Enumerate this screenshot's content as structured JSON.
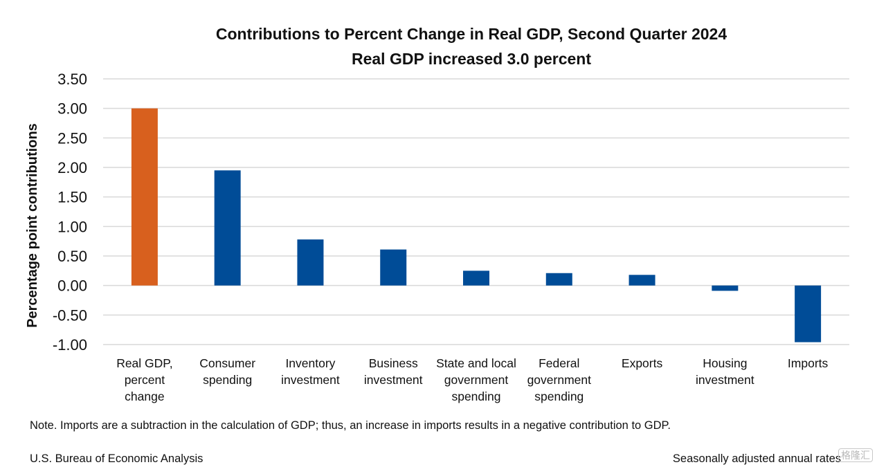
{
  "chart_data": {
    "type": "bar",
    "title": "Contributions to Percent Change in Real GDP, Second Quarter 2024",
    "subtitle": "Real GDP increased 3.0 percent",
    "xlabel": "",
    "ylabel": "Percentage point contributions",
    "ylim": [
      -1.0,
      3.5
    ],
    "ytick_step": 0.5,
    "yticks": [
      "3.50",
      "3.00",
      "2.50",
      "2.00",
      "1.50",
      "1.00",
      "0.50",
      "0.00",
      "-0.50",
      "-1.00"
    ],
    "grid": true,
    "categories": [
      [
        "Real GDP,",
        "percent",
        "change"
      ],
      [
        "Consumer",
        "spending"
      ],
      [
        "Inventory",
        "investment"
      ],
      [
        "Business",
        "investment"
      ],
      [
        "State and local",
        "government",
        "spending"
      ],
      [
        "Federal",
        "government",
        "spending"
      ],
      [
        "Exports"
      ],
      [
        "Housing",
        "investment"
      ],
      [
        "Imports"
      ]
    ],
    "values": [
      3.0,
      1.95,
      0.78,
      0.61,
      0.25,
      0.21,
      0.18,
      -0.09,
      -0.96
    ],
    "colors": [
      "#D8601E",
      "#004C97",
      "#004C97",
      "#004C97",
      "#004C97",
      "#004C97",
      "#004C97",
      "#004C97",
      "#004C97"
    ]
  },
  "footer": {
    "note": "Note. Imports are a subtraction in the calculation of GDP; thus, an increase in imports results in a negative contribution to GDP.",
    "source": "U.S. Bureau of Economic Analysis",
    "adjustment": "Seasonally adjusted annual rates",
    "watermark": "格隆汇"
  }
}
